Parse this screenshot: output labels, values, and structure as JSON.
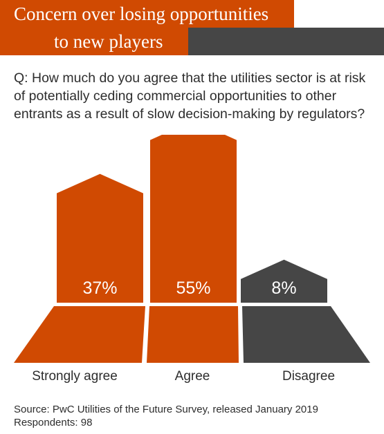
{
  "header": {
    "title_line1": "Concern over losing opportunities",
    "title_line2": "to new players"
  },
  "question": "Q: How much do you agree that the utilities sector is at risk of potentially ceding commercial opportunities to other entrants as a result of slow decision-making by regulators?",
  "chart_data": {
    "type": "bar",
    "title": "Concern over losing opportunities to new players",
    "categories": [
      "Strongly agree",
      "Agree",
      "Disagree"
    ],
    "values": [
      37,
      55,
      8
    ],
    "value_labels": [
      "37%",
      "55%",
      "8%"
    ],
    "unit": "%",
    "colors": [
      "#d04a02",
      "#d04a02",
      "#464646"
    ],
    "ylim": [
      0,
      55
    ]
  },
  "footer": {
    "source": "Source: PwC Utilities of the Future Survey, released January 2019",
    "respondents": "Respondents: 98"
  },
  "colors": {
    "accent": "#d04a02",
    "dark": "#464646",
    "text": "#2d2d2d"
  }
}
